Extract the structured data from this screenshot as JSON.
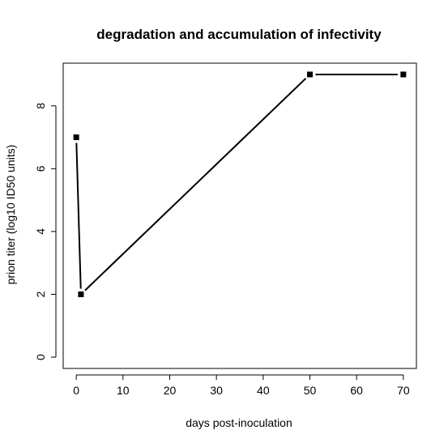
{
  "chart_data": {
    "type": "line",
    "title": "degradation and accumulation of infectivity",
    "xlabel": "days post-inoculation",
    "ylabel": "prion titer (log10 ID50 units)",
    "xlim": [
      -2.8,
      72.8
    ],
    "ylim": [
      -0.36,
      9.36
    ],
    "x_ticks": [
      0,
      10,
      20,
      30,
      40,
      50,
      60,
      70
    ],
    "y_ticks": [
      0,
      2,
      4,
      6,
      8
    ],
    "grid": false,
    "legend": "none",
    "marker": "square",
    "line_color": "#000000",
    "series": [
      {
        "x": [
          0,
          1,
          50,
          70
        ],
        "values": [
          7,
          2,
          9,
          9
        ]
      }
    ]
  }
}
